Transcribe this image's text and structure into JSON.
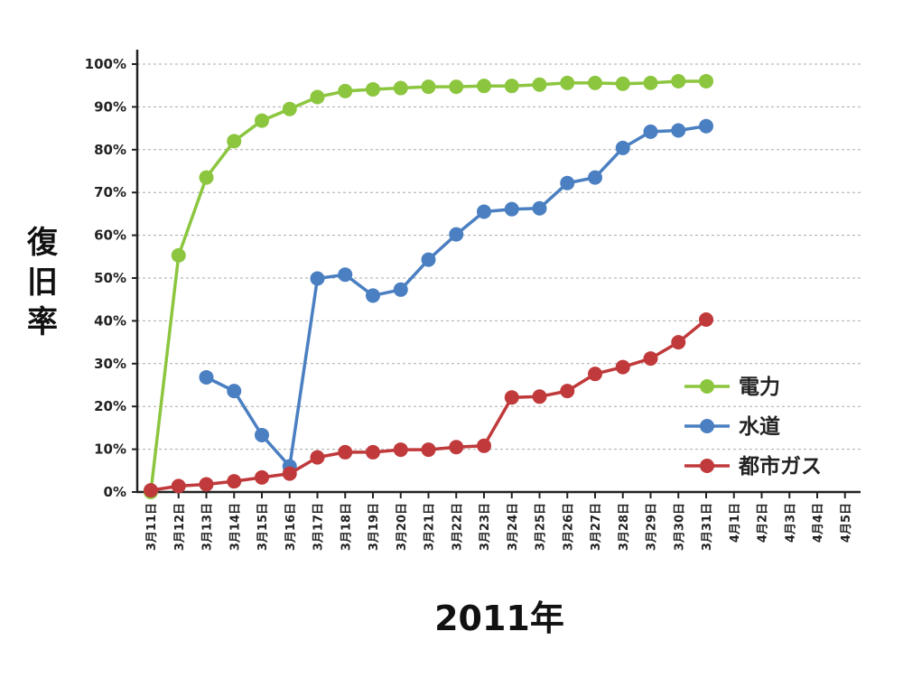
{
  "chart_data": {
    "type": "line",
    "title": "",
    "ylabel": "復旧率",
    "xlabel": "2011年",
    "ylim": [
      0,
      100
    ],
    "yticks": [
      "0%",
      "10%",
      "20%",
      "30%",
      "40%",
      "50%",
      "60%",
      "70%",
      "80%",
      "90%",
      "100%"
    ],
    "categories": [
      "3月11日",
      "3月12日",
      "3月13日",
      "3月14日",
      "3月15日",
      "3月16日",
      "3月17日",
      "3月18日",
      "3月19日",
      "3月20日",
      "3月21日",
      "3月22日",
      "3月23日",
      "3月24日",
      "3月25日",
      "3月26日",
      "3月27日",
      "3月28日",
      "3月29日",
      "3月30日",
      "3月31日",
      "4月1日",
      "4月2日",
      "4月3日",
      "4月4日",
      "4月5日"
    ],
    "grid": "horizontal dashed",
    "legend_position": "bottom-right",
    "series": [
      {
        "name": "電力",
        "color": "#8cc63f",
        "values": [
          0,
          55.3,
          73.5,
          82,
          86.8,
          89.5,
          92.3,
          93.7,
          94.1,
          94.4,
          94.7,
          94.7,
          94.9,
          94.9,
          95.2,
          95.6,
          95.6,
          95.4,
          95.6,
          96,
          96,
          null,
          null,
          null,
          null,
          null
        ]
      },
      {
        "name": "水道",
        "color": "#4a7fc1",
        "values": [
          null,
          null,
          26.8,
          23.6,
          13.3,
          6,
          49.9,
          50.8,
          45.9,
          47.3,
          54.3,
          60.2,
          65.5,
          66.1,
          66.3,
          72.2,
          73.5,
          80.4,
          84.2,
          84.5,
          85.5,
          null,
          null,
          null,
          null,
          null
        ]
      },
      {
        "name": "都市ガス",
        "color": "#c0393b",
        "values": [
          0.4,
          1.4,
          1.8,
          2.5,
          3.4,
          4.3,
          8.1,
          9.3,
          9.3,
          9.9,
          9.9,
          10.5,
          10.8,
          22.1,
          22.3,
          23.6,
          27.6,
          29.2,
          31.2,
          35,
          40.3,
          null,
          null,
          null,
          null,
          null
        ]
      }
    ]
  }
}
